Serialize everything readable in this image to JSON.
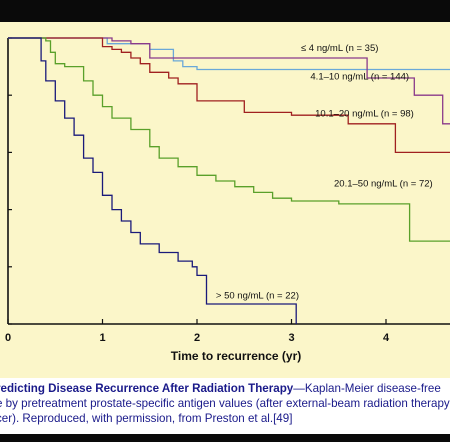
{
  "chart_data": {
    "type": "line",
    "step": true,
    "title": "",
    "xlabel": "Time to recurrence (yr)",
    "ylabel": "",
    "xlim": [
      0,
      4.7
    ],
    "ylim": [
      0,
      1.0
    ],
    "xticks": [
      0,
      1,
      2,
      3,
      4
    ],
    "colors": {
      "le4": "#6aa8d8",
      "r4_10": "#8a3a8a",
      "r10_20": "#a02020",
      "r20_50": "#5aa02a",
      "gt50": "#1a1a7a"
    },
    "series": [
      {
        "key": "le4",
        "name": "≤ 4 ng/mL (n = 35)",
        "points": [
          [
            0,
            1.0
          ],
          [
            1.0,
            1.0
          ],
          [
            1.05,
            0.98
          ],
          [
            1.45,
            0.98
          ],
          [
            1.5,
            0.96
          ],
          [
            1.7,
            0.96
          ],
          [
            1.75,
            0.92
          ],
          [
            1.8,
            0.92
          ],
          [
            1.85,
            0.9
          ],
          [
            2.0,
            0.89
          ],
          [
            4.7,
            0.89
          ]
        ]
      },
      {
        "key": "r4_10",
        "name": "4.1–10 ng/mL (n = 144)",
        "points": [
          [
            0,
            1.0
          ],
          [
            1.0,
            1.0
          ],
          [
            1.1,
            0.99
          ],
          [
            1.3,
            0.98
          ],
          [
            1.5,
            0.93
          ],
          [
            1.6,
            0.93
          ],
          [
            2.0,
            0.93
          ],
          [
            2.5,
            0.93
          ],
          [
            3.8,
            0.93
          ],
          [
            3.8,
            0.86
          ],
          [
            4.3,
            0.86
          ],
          [
            4.3,
            0.8
          ],
          [
            4.6,
            0.8
          ],
          [
            4.6,
            0.7
          ],
          [
            4.7,
            0.7
          ]
        ]
      },
      {
        "key": "r10_20",
        "name": "10.1–20 ng/mL (n = 98)",
        "points": [
          [
            0,
            1.0
          ],
          [
            0.9,
            1.0
          ],
          [
            1.0,
            0.97
          ],
          [
            1.1,
            0.96
          ],
          [
            1.2,
            0.95
          ],
          [
            1.3,
            0.93
          ],
          [
            1.4,
            0.91
          ],
          [
            1.5,
            0.88
          ],
          [
            1.7,
            0.86
          ],
          [
            1.8,
            0.84
          ],
          [
            2.0,
            0.78
          ],
          [
            2.5,
            0.74
          ],
          [
            3.0,
            0.73
          ],
          [
            3.5,
            0.73
          ],
          [
            3.6,
            0.7
          ],
          [
            4.1,
            0.7
          ],
          [
            4.1,
            0.6
          ],
          [
            4.7,
            0.6
          ]
        ]
      },
      {
        "key": "r20_50",
        "name": "20.1–50 ng/mL (n = 72)",
        "points": [
          [
            0,
            1.0
          ],
          [
            0.4,
            0.99
          ],
          [
            0.45,
            0.95
          ],
          [
            0.5,
            0.91
          ],
          [
            0.6,
            0.9
          ],
          [
            0.8,
            0.85
          ],
          [
            0.9,
            0.8
          ],
          [
            1.0,
            0.76
          ],
          [
            1.1,
            0.72
          ],
          [
            1.3,
            0.68
          ],
          [
            1.5,
            0.62
          ],
          [
            1.6,
            0.58
          ],
          [
            1.8,
            0.55
          ],
          [
            2.0,
            0.52
          ],
          [
            2.2,
            0.5
          ],
          [
            2.4,
            0.48
          ],
          [
            2.6,
            0.46
          ],
          [
            2.8,
            0.44
          ],
          [
            3.0,
            0.43
          ],
          [
            3.5,
            0.42
          ],
          [
            4.2,
            0.42
          ],
          [
            4.25,
            0.29
          ],
          [
            4.7,
            0.29
          ]
        ]
      },
      {
        "key": "gt50",
        "name": "> 50 ng/mL (n = 22)",
        "points": [
          [
            0,
            1.0
          ],
          [
            0.3,
            1.0
          ],
          [
            0.35,
            0.92
          ],
          [
            0.4,
            0.85
          ],
          [
            0.5,
            0.78
          ],
          [
            0.6,
            0.72
          ],
          [
            0.7,
            0.66
          ],
          [
            0.8,
            0.58
          ],
          [
            0.9,
            0.53
          ],
          [
            1.0,
            0.45
          ],
          [
            1.1,
            0.4
          ],
          [
            1.2,
            0.36
          ],
          [
            1.3,
            0.32
          ],
          [
            1.4,
            0.28
          ],
          [
            1.6,
            0.25
          ],
          [
            1.8,
            0.22
          ],
          [
            1.95,
            0.2
          ],
          [
            2.0,
            0.17
          ],
          [
            2.1,
            0.12
          ],
          [
            2.1,
            0.07
          ],
          [
            2.4,
            0.07
          ],
          [
            3.05,
            0.07
          ],
          [
            3.05,
            0.0
          ]
        ]
      }
    ],
    "labels": [
      {
        "key": "le4",
        "text": "≤ 4 ng/mL (n = 35)",
        "x": 3.1,
        "y": 0.955
      },
      {
        "key": "r4_10",
        "text": "4.1–10 ng/mL (n = 144)",
        "x": 3.2,
        "y": 0.855
      },
      {
        "key": "r10_20",
        "text": "10.1–20 ng/mL (n = 98)",
        "x": 3.25,
        "y": 0.725
      },
      {
        "key": "r20_50",
        "text": "20.1–50 ng/mL (n = 72)",
        "x": 3.45,
        "y": 0.48
      },
      {
        "key": "gt50",
        "text": "> 50 ng/mL (n = 22)",
        "x": 2.2,
        "y": 0.09
      }
    ]
  },
  "caption": {
    "line1_bold": "redicting Disease Recurrence After Radiation Therapy",
    "line1_rest": "—Kaplan-Meier disease-free",
    "line2": "e by pretreatment prostate-specific antigen values (after external-beam radiation therapy for",
    "line3": "cer). Reproduced, with permission, from Preston et al.[49]"
  }
}
